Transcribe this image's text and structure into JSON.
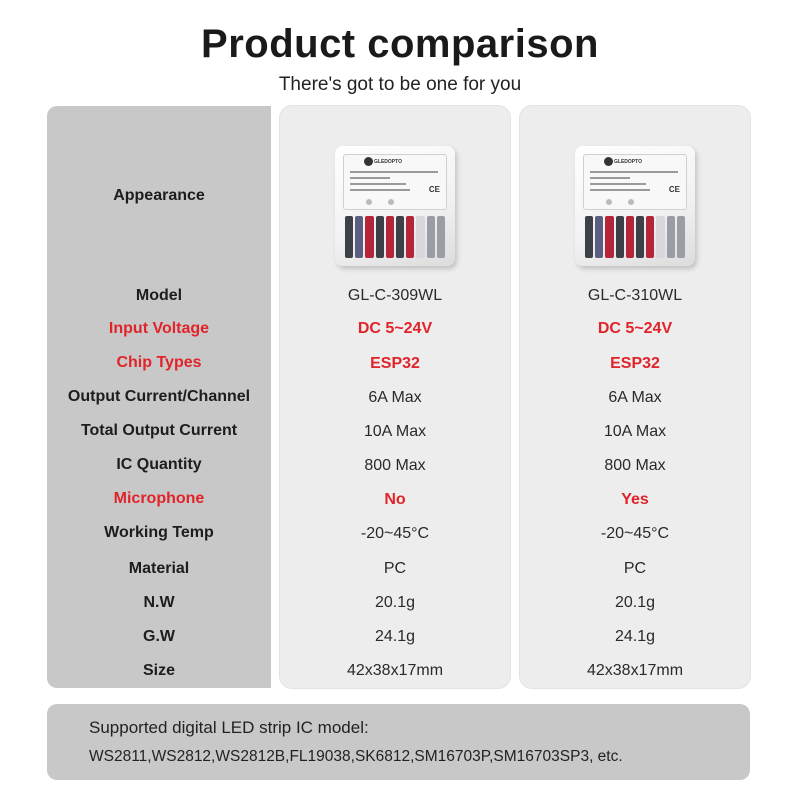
{
  "header": {
    "title": "Product comparison",
    "subtitle": "There's got to be one for you"
  },
  "labels": [
    {
      "text": "Appearance",
      "highlight": false
    },
    {
      "text": "Model",
      "highlight": false
    },
    {
      "text": "Input Voltage",
      "highlight": true
    },
    {
      "text": "Chip Types",
      "highlight": true
    },
    {
      "text": "Output Current/Channel",
      "highlight": false
    },
    {
      "text": "Total Output Current",
      "highlight": false
    },
    {
      "text": "IC Quantity",
      "highlight": false
    },
    {
      "text": "Microphone",
      "highlight": true
    },
    {
      "text": "Working Temp",
      "highlight": false
    },
    {
      "text": "Material",
      "highlight": false
    },
    {
      "text": "N.W",
      "highlight": false
    },
    {
      "text": "G.W",
      "highlight": false
    },
    {
      "text": "Size",
      "highlight": false
    }
  ],
  "products": [
    {
      "model": "GL-C-309WL",
      "input_voltage": "DC 5~24V",
      "chip_types": "ESP32",
      "output_current_channel": "6A Max",
      "total_output_current": "10A Max",
      "ic_quantity": "800 Max",
      "microphone": "No",
      "working_temp": "-20~45°C",
      "material": "PC",
      "nw": "20.1g",
      "gw": "24.1g",
      "size": "42x38x17mm",
      "device": {
        "brand": "GLEDOPTO",
        "label": "ESP32 WLED Digital LED Controller",
        "ce": "CE"
      }
    },
    {
      "model": "GL-C-310WL",
      "input_voltage": "DC 5~24V",
      "chip_types": "ESP32",
      "output_current_channel": "6A Max",
      "total_output_current": "10A Max",
      "ic_quantity": "800 Max",
      "microphone": "Yes",
      "working_temp": "-20~45°C",
      "material": "PC",
      "nw": "20.1g",
      "gw": "24.1g",
      "size": "42x38x17mm",
      "device": {
        "brand": "GLEDOPTO",
        "label": "ESP32 WLED Digital LED Controller",
        "ce": "CE"
      }
    }
  ],
  "footer": {
    "heading": "Supported digital LED strip IC model:",
    "models": "WS2811,WS2812,WS2812B,FL19038,SK6812,SM16703P,SM16703SP3, etc."
  },
  "colors": {
    "highlight": "#e0242a",
    "label_panel": "#c8c8c8",
    "product_panel": "#ededed"
  }
}
